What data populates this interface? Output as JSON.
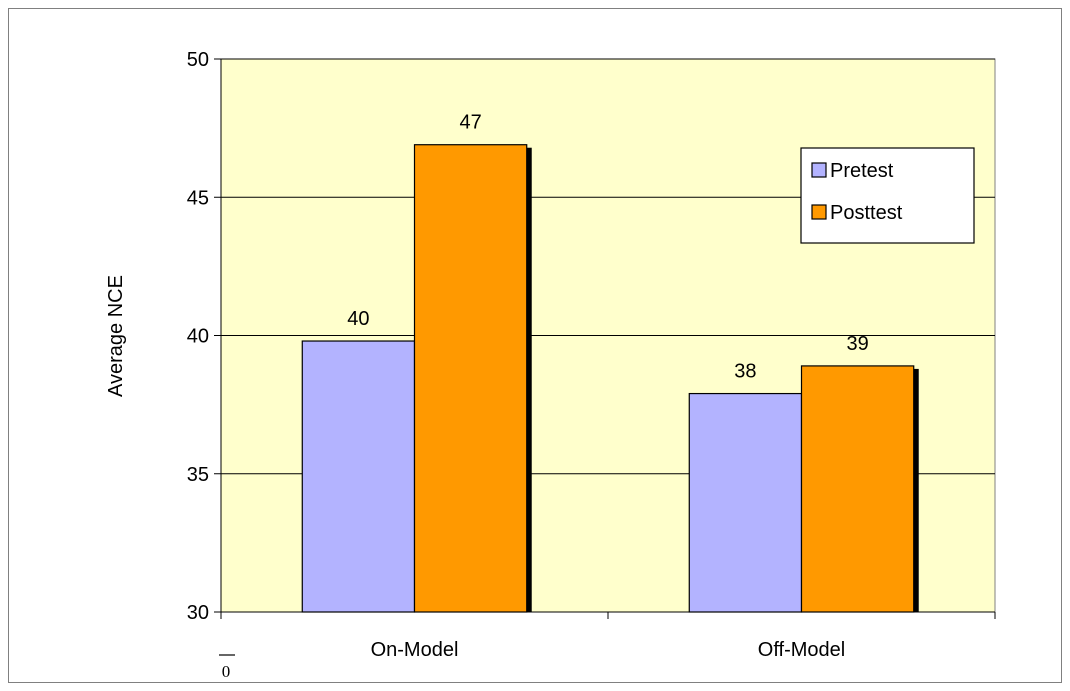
{
  "corner_mark": "0",
  "chart_data": {
    "type": "bar",
    "categories": [
      "On-Model",
      "Off-Model"
    ],
    "series": [
      {
        "name": "Pretest",
        "values": [
          39.8,
          37.9
        ],
        "labels": [
          "40",
          "38"
        ],
        "color": "#b3b3ff"
      },
      {
        "name": "Posttest",
        "values": [
          46.9,
          38.9
        ],
        "labels": [
          "47",
          "39"
        ],
        "color": "#ff9900"
      }
    ],
    "ylabel": "Average NCE",
    "ylim": [
      30,
      50
    ],
    "yticks": [
      30,
      35,
      40,
      45,
      50
    ],
    "grid": true,
    "legend_position": "top-right",
    "plot_background": "#ffffcc",
    "shadow_color": "#000000"
  }
}
